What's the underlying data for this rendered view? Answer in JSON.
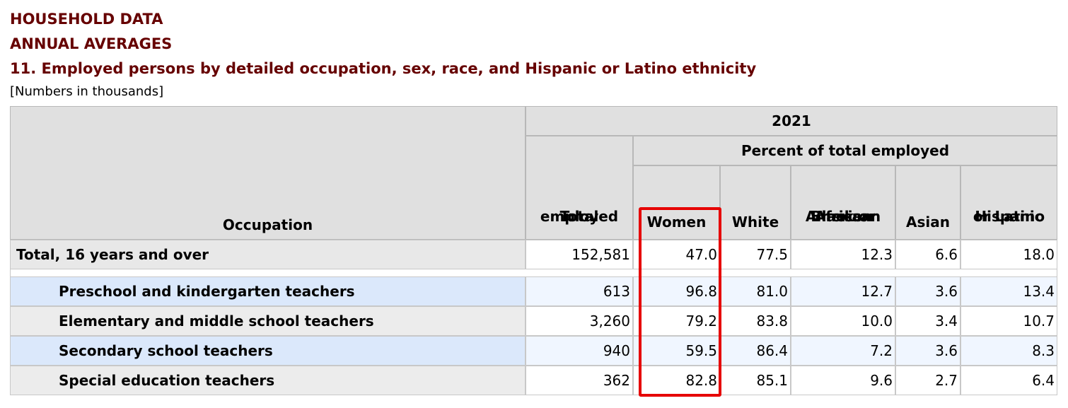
{
  "header": {
    "line1": "HOUSEHOLD DATA",
    "line2": "ANNUAL AVERAGES",
    "table_title": "11. Employed persons by detailed occupation, sex, race, and Hispanic or Latino ethnicity",
    "note": "[Numbers in thousands]"
  },
  "columns": {
    "occupation": "Occupation",
    "year": "2021",
    "total_line1": "Total",
    "total_line2": "employed",
    "percent_group": "Percent of total employed",
    "women": "Women",
    "white": "White",
    "black_line1": "Black or",
    "black_line2": "African",
    "black_line3": "American",
    "asian": "Asian",
    "hispanic_line1": "Hispanic",
    "hispanic_line2": "or Latino"
  },
  "rows": [
    {
      "occupation": "Total, 16 years and over",
      "total": "152,581",
      "women": "47.0",
      "white": "77.5",
      "black": "12.3",
      "asian": "6.6",
      "hispanic": "18.0"
    },
    {
      "occupation": "Preschool and kindergarten teachers",
      "total": "613",
      "women": "96.8",
      "white": "81.0",
      "black": "12.7",
      "asian": "3.6",
      "hispanic": "13.4"
    },
    {
      "occupation": "Elementary and middle school teachers",
      "total": "3,260",
      "women": "79.2",
      "white": "83.8",
      "black": "10.0",
      "asian": "3.4",
      "hispanic": "10.7"
    },
    {
      "occupation": "Secondary school teachers",
      "total": "940",
      "women": "59.5",
      "white": "86.4",
      "black": "7.2",
      "asian": "3.6",
      "hispanic": "8.3"
    },
    {
      "occupation": "Special education teachers",
      "total": "362",
      "women": "82.8",
      "white": "85.1",
      "black": "9.6",
      "asian": "2.7",
      "hispanic": "6.4"
    }
  ],
  "highlight": {
    "column": "Women",
    "color": "#e60000"
  }
}
